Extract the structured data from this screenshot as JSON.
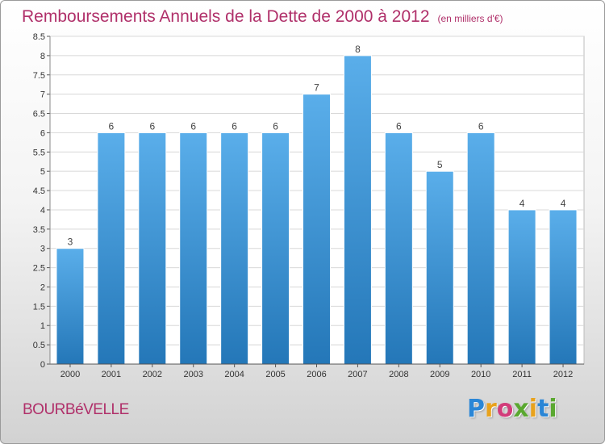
{
  "chart_data": {
    "type": "bar",
    "title": "Remboursements Annuels de la Dette de 2000 à 2012",
    "subtitle": "(en milliers d'€)",
    "categories": [
      "2000",
      "2001",
      "2002",
      "2003",
      "2004",
      "2005",
      "2006",
      "2007",
      "2008",
      "2009",
      "2010",
      "2011",
      "2012"
    ],
    "values": [
      3,
      6,
      6,
      6,
      6,
      6,
      7,
      8,
      6,
      5,
      6,
      4,
      4
    ],
    "data_labels": [
      "3",
      "6",
      "6",
      "6",
      "6",
      "6",
      "7",
      "8",
      "6",
      "5",
      "6",
      "4",
      "4"
    ],
    "ylim": [
      0,
      8.5
    ],
    "yticks": [
      "0",
      "0.5",
      "1",
      "1.5",
      "2",
      "2.5",
      "3",
      "3.5",
      "4",
      "4.5",
      "5",
      "5.5",
      "6",
      "6.5",
      "7",
      "7.5",
      "8",
      "8.5"
    ],
    "ytick_values": [
      0,
      0.5,
      1,
      1.5,
      2,
      2.5,
      3,
      3.5,
      4,
      4.5,
      5,
      5.5,
      6,
      6.5,
      7,
      7.5,
      8,
      8.5
    ],
    "grid": true,
    "legend": "none",
    "bar_color_top": "#5aaeea",
    "bar_color_bottom": "#2477b8"
  },
  "footer": {
    "town": "BOURBéVELLE",
    "brand_letters": [
      {
        "ch": "P",
        "color": "#2a86d6"
      },
      {
        "ch": "r",
        "color": "#e8a21c"
      },
      {
        "ch": "o",
        "color": "#d23c7a"
      },
      {
        "ch": "x",
        "color": "#5aa830"
      },
      {
        "ch": "i",
        "color": "#e8a21c"
      },
      {
        "ch": "t",
        "color": "#2a86d6"
      },
      {
        "ch": "i",
        "color": "#5aa830"
      }
    ]
  },
  "colors": {
    "title": "#b0306a",
    "gridline": "#d8d8d8",
    "axis": "#555555"
  }
}
